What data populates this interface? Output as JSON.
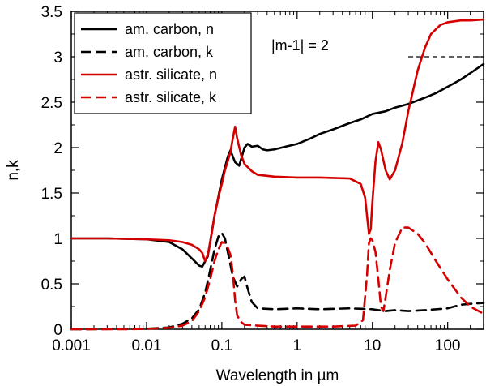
{
  "chart_data": {
    "type": "line",
    "title": "",
    "xlabel": "Wavelength in µm",
    "ylabel": "n,k",
    "xscale": "log",
    "xlim": [
      0.001,
      300
    ],
    "ylim": [
      0,
      3.5
    ],
    "x_ticks": [
      {
        "value": 0.001,
        "label": "0.001"
      },
      {
        "value": 0.01,
        "label": "0.01"
      },
      {
        "value": 0.1,
        "label": "0.1"
      },
      {
        "value": 1,
        "label": "1"
      },
      {
        "value": 10,
        "label": "10"
      },
      {
        "value": 100,
        "label": "100"
      }
    ],
    "y_ticks": [
      {
        "value": 0,
        "label": "0"
      },
      {
        "value": 0.5,
        "label": "0.5"
      },
      {
        "value": 1,
        "label": "1"
      },
      {
        "value": 1.5,
        "label": "1.5"
      },
      {
        "value": 2,
        "label": "2"
      },
      {
        "value": 2.5,
        "label": "2.5"
      },
      {
        "value": 3,
        "label": "3"
      },
      {
        "value": 3.5,
        "label": "3.5"
      }
    ],
    "legend_position": "top-left",
    "series": [
      {
        "name": "am. carbon, n",
        "color": "#000000",
        "dash": "solid",
        "points": [
          [
            0.001,
            1.0
          ],
          [
            0.003,
            1.0
          ],
          [
            0.01,
            0.99
          ],
          [
            0.02,
            0.96
          ],
          [
            0.03,
            0.88
          ],
          [
            0.04,
            0.78
          ],
          [
            0.05,
            0.7
          ],
          [
            0.055,
            0.69
          ],
          [
            0.065,
            0.8
          ],
          [
            0.08,
            1.25
          ],
          [
            0.1,
            1.65
          ],
          [
            0.12,
            1.9
          ],
          [
            0.13,
            1.97
          ],
          [
            0.15,
            1.84
          ],
          [
            0.17,
            1.8
          ],
          [
            0.2,
            2.0
          ],
          [
            0.22,
            2.04
          ],
          [
            0.25,
            2.01
          ],
          [
            0.3,
            2.02
          ],
          [
            0.35,
            1.98
          ],
          [
            0.4,
            1.97
          ],
          [
            0.5,
            1.98
          ],
          [
            0.7,
            2.01
          ],
          [
            1,
            2.04
          ],
          [
            1.5,
            2.1
          ],
          [
            2,
            2.15
          ],
          [
            3,
            2.2
          ],
          [
            5,
            2.27
          ],
          [
            7,
            2.31
          ],
          [
            10,
            2.37
          ],
          [
            15,
            2.4
          ],
          [
            20,
            2.44
          ],
          [
            30,
            2.48
          ],
          [
            50,
            2.55
          ],
          [
            70,
            2.6
          ],
          [
            100,
            2.67
          ],
          [
            150,
            2.75
          ],
          [
            200,
            2.82
          ],
          [
            300,
            2.92
          ]
        ]
      },
      {
        "name": "am. carbon, k",
        "color": "#000000",
        "dash": "dashed",
        "points": [
          [
            0.001,
            0.0
          ],
          [
            0.005,
            0.003
          ],
          [
            0.01,
            0.005
          ],
          [
            0.02,
            0.02
          ],
          [
            0.03,
            0.06
          ],
          [
            0.04,
            0.12
          ],
          [
            0.05,
            0.22
          ],
          [
            0.06,
            0.4
          ],
          [
            0.07,
            0.65
          ],
          [
            0.08,
            0.88
          ],
          [
            0.09,
            1.02
          ],
          [
            0.1,
            1.06
          ],
          [
            0.11,
            1.0
          ],
          [
            0.12,
            0.85
          ],
          [
            0.14,
            0.58
          ],
          [
            0.16,
            0.47
          ],
          [
            0.18,
            0.55
          ],
          [
            0.2,
            0.58
          ],
          [
            0.22,
            0.45
          ],
          [
            0.25,
            0.3
          ],
          [
            0.3,
            0.23
          ],
          [
            0.5,
            0.22
          ],
          [
            1,
            0.23
          ],
          [
            2,
            0.22
          ],
          [
            5,
            0.23
          ],
          [
            10,
            0.22
          ],
          [
            15,
            0.2
          ],
          [
            20,
            0.21
          ],
          [
            30,
            0.2
          ],
          [
            50,
            0.21
          ],
          [
            100,
            0.23
          ],
          [
            150,
            0.27
          ],
          [
            200,
            0.28
          ],
          [
            300,
            0.29
          ]
        ]
      },
      {
        "name": "astr. silicate, n",
        "color": "#d40000",
        "dash": "solid",
        "points": [
          [
            0.001,
            1.0
          ],
          [
            0.003,
            1.0
          ],
          [
            0.01,
            0.99
          ],
          [
            0.02,
            0.98
          ],
          [
            0.03,
            0.96
          ],
          [
            0.04,
            0.93
          ],
          [
            0.05,
            0.88
          ],
          [
            0.055,
            0.84
          ],
          [
            0.06,
            0.75
          ],
          [
            0.065,
            0.82
          ],
          [
            0.07,
            0.95
          ],
          [
            0.08,
            1.25
          ],
          [
            0.09,
            1.45
          ],
          [
            0.1,
            1.6
          ],
          [
            0.11,
            1.75
          ],
          [
            0.12,
            1.85
          ],
          [
            0.13,
            1.95
          ],
          [
            0.14,
            2.1
          ],
          [
            0.15,
            2.23
          ],
          [
            0.16,
            2.1
          ],
          [
            0.18,
            1.92
          ],
          [
            0.2,
            1.82
          ],
          [
            0.25,
            1.74
          ],
          [
            0.3,
            1.7
          ],
          [
            0.5,
            1.68
          ],
          [
            1,
            1.67
          ],
          [
            2,
            1.67
          ],
          [
            5,
            1.66
          ],
          [
            7,
            1.6
          ],
          [
            8,
            1.45
          ],
          [
            9,
            1.05
          ],
          [
            9.5,
            1.1
          ],
          [
            10,
            1.4
          ],
          [
            11,
            1.85
          ],
          [
            12,
            2.06
          ],
          [
            13,
            1.98
          ],
          [
            15,
            1.75
          ],
          [
            17,
            1.65
          ],
          [
            20,
            1.75
          ],
          [
            25,
            2.05
          ],
          [
            30,
            2.4
          ],
          [
            40,
            2.85
          ],
          [
            50,
            3.1
          ],
          [
            60,
            3.25
          ],
          [
            80,
            3.35
          ],
          [
            100,
            3.38
          ],
          [
            150,
            3.4
          ],
          [
            200,
            3.4
          ],
          [
            300,
            3.41
          ]
        ]
      },
      {
        "name": "astr. silicate, k",
        "color": "#d40000",
        "dash": "dashed",
        "points": [
          [
            0.001,
            0.0
          ],
          [
            0.005,
            0.0
          ],
          [
            0.01,
            0.005
          ],
          [
            0.02,
            0.015
          ],
          [
            0.03,
            0.04
          ],
          [
            0.04,
            0.09
          ],
          [
            0.05,
            0.2
          ],
          [
            0.06,
            0.35
          ],
          [
            0.07,
            0.55
          ],
          [
            0.08,
            0.75
          ],
          [
            0.09,
            0.88
          ],
          [
            0.1,
            0.96
          ],
          [
            0.11,
            0.95
          ],
          [
            0.12,
            0.9
          ],
          [
            0.13,
            0.82
          ],
          [
            0.14,
            0.62
          ],
          [
            0.15,
            0.32
          ],
          [
            0.16,
            0.15
          ],
          [
            0.18,
            0.08
          ],
          [
            0.2,
            0.05
          ],
          [
            0.3,
            0.04
          ],
          [
            0.5,
            0.03
          ],
          [
            1,
            0.03
          ],
          [
            3,
            0.03
          ],
          [
            6,
            0.04
          ],
          [
            7.5,
            0.1
          ],
          [
            8.5,
            0.6
          ],
          [
            9,
            0.95
          ],
          [
            9.5,
            1.0
          ],
          [
            10,
            0.98
          ],
          [
            11,
            0.85
          ],
          [
            12,
            0.55
          ],
          [
            13,
            0.25
          ],
          [
            14,
            0.2
          ],
          [
            15,
            0.35
          ],
          [
            17,
            0.65
          ],
          [
            20,
            0.95
          ],
          [
            25,
            1.12
          ],
          [
            30,
            1.12
          ],
          [
            40,
            1.05
          ],
          [
            50,
            0.95
          ],
          [
            70,
            0.75
          ],
          [
            100,
            0.55
          ],
          [
            150,
            0.35
          ],
          [
            200,
            0.25
          ],
          [
            300,
            0.17
          ]
        ]
      }
    ],
    "reference_line": {
      "y": 3.0,
      "x_from": 30,
      "label": "|m-1| = 2",
      "dash": "dashed",
      "color": "#000000"
    }
  }
}
